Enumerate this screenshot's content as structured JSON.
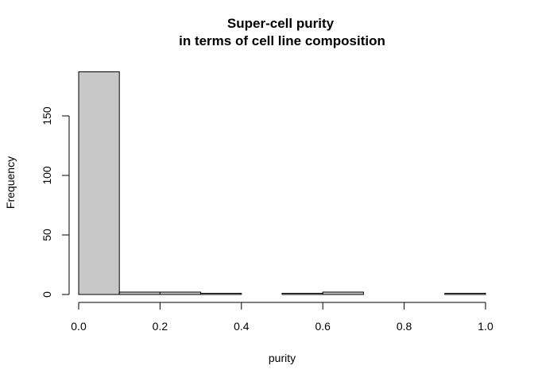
{
  "chart_data": {
    "type": "bar",
    "title": [
      "Super-cell purity",
      "in terms of cell line composition"
    ],
    "xlabel": "purity",
    "ylabel": "Frequency",
    "bins": [
      {
        "x0": 0.0,
        "x1": 0.1,
        "value": 187
      },
      {
        "x0": 0.1,
        "x1": 0.2,
        "value": 2
      },
      {
        "x0": 0.2,
        "x1": 0.3,
        "value": 2
      },
      {
        "x0": 0.3,
        "x1": 0.4,
        "value": 1
      },
      {
        "x0": 0.4,
        "x1": 0.5,
        "value": 0
      },
      {
        "x0": 0.5,
        "x1": 0.6,
        "value": 1
      },
      {
        "x0": 0.6,
        "x1": 0.7,
        "value": 2
      },
      {
        "x0": 0.7,
        "x1": 0.8,
        "value": 0
      },
      {
        "x0": 0.8,
        "x1": 0.9,
        "value": 0
      },
      {
        "x0": 0.9,
        "x1": 1.0,
        "value": 1
      }
    ],
    "xlim": [
      0.0,
      1.0
    ],
    "ylim": [
      0,
      200
    ],
    "x_ticks": [
      "0.0",
      "0.2",
      "0.4",
      "0.6",
      "0.8",
      "1.0"
    ],
    "y_ticks": [
      "0",
      "50",
      "100",
      "150"
    ],
    "grid": false,
    "bar_color": "#c8c8c8"
  }
}
